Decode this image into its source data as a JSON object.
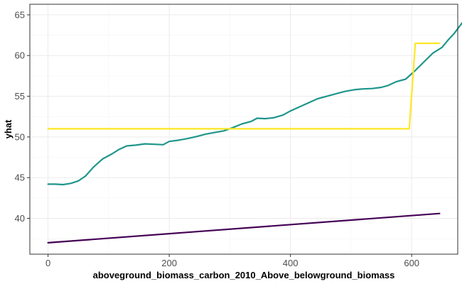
{
  "chart_data": {
    "type": "line",
    "xlabel": "aboveground_biomass_carbon_2010_Above_belowground_biomass",
    "ylabel": "yhat",
    "xlim": [
      -30,
      676
    ],
    "ylim": [
      35.6,
      66.3
    ],
    "x_ticks": [
      0,
      200,
      400,
      600
    ],
    "y_ticks": [
      40,
      45,
      50,
      55,
      60,
      65
    ],
    "grid": true,
    "series": [
      {
        "color": "#1f968b",
        "points": [
          [
            0,
            44.2
          ],
          [
            12,
            44.2
          ],
          [
            25,
            44.15
          ],
          [
            38,
            44.3
          ],
          [
            50,
            44.6
          ],
          [
            62,
            45.2
          ],
          [
            75,
            46.3
          ],
          [
            90,
            47.3
          ],
          [
            105,
            47.9
          ],
          [
            118,
            48.5
          ],
          [
            130,
            48.9
          ],
          [
            145,
            49.0
          ],
          [
            160,
            49.15
          ],
          [
            175,
            49.1
          ],
          [
            190,
            49.05
          ],
          [
            200,
            49.45
          ],
          [
            215,
            49.6
          ],
          [
            230,
            49.8
          ],
          [
            245,
            50.05
          ],
          [
            260,
            50.35
          ],
          [
            275,
            50.55
          ],
          [
            290,
            50.75
          ],
          [
            305,
            51.15
          ],
          [
            320,
            51.6
          ],
          [
            335,
            51.9
          ],
          [
            345,
            52.3
          ],
          [
            358,
            52.25
          ],
          [
            372,
            52.35
          ],
          [
            388,
            52.7
          ],
          [
            400,
            53.2
          ],
          [
            415,
            53.7
          ],
          [
            430,
            54.2
          ],
          [
            445,
            54.7
          ],
          [
            460,
            55.0
          ],
          [
            475,
            55.3
          ],
          [
            490,
            55.6
          ],
          [
            505,
            55.8
          ],
          [
            520,
            55.9
          ],
          [
            535,
            55.95
          ],
          [
            550,
            56.1
          ],
          [
            560,
            56.3
          ],
          [
            575,
            56.8
          ],
          [
            590,
            57.1
          ],
          [
            605,
            58.1
          ],
          [
            620,
            59.2
          ],
          [
            635,
            60.3
          ],
          [
            650,
            61.0
          ],
          [
            660,
            61.9
          ],
          [
            670,
            62.7
          ],
          [
            683,
            64.0
          ],
          [
            695,
            64.8
          ]
        ]
      },
      {
        "color": "#fde725",
        "points": [
          [
            0,
            51.0
          ],
          [
            596,
            51.0
          ],
          [
            606,
            61.5
          ],
          [
            646,
            61.5
          ]
        ]
      },
      {
        "color": "#440154",
        "points": [
          [
            0,
            37.0
          ],
          [
            646,
            40.6
          ]
        ]
      }
    ]
  }
}
